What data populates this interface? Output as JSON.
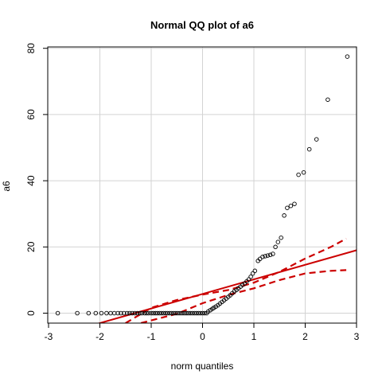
{
  "chart_data": {
    "type": "scatter",
    "title": "Normal QQ plot of  a6",
    "xlabel": "norm quantiles",
    "ylabel": "a6",
    "xlim": [
      -3,
      3
    ],
    "ylim": [
      -3,
      80
    ],
    "x_ticks": [
      -3,
      -2,
      -1,
      0,
      1,
      2,
      3
    ],
    "y_ticks": [
      0,
      20,
      40,
      60,
      80
    ],
    "grid": true,
    "colors": {
      "points": "#000000",
      "fit": "#cc0000",
      "envelope": "#cc0000",
      "grid": "#d3d3d3"
    },
    "fit_line": {
      "intercept": 5.8,
      "slope": 4.4
    },
    "envelope": {
      "upper": [
        [
          -1.5,
          -3.0
        ],
        [
          -1.0,
          1.6
        ],
        [
          -0.5,
          4.0
        ],
        [
          0.0,
          5.6
        ],
        [
          0.5,
          7.0
        ],
        [
          1.0,
          9.2
        ],
        [
          1.5,
          12.5
        ],
        [
          2.0,
          16.5
        ],
        [
          2.5,
          20.0
        ],
        [
          2.8,
          22.5
        ]
      ],
      "lower": [
        [
          -1.2,
          -3.0
        ],
        [
          -0.5,
          -0.2
        ],
        [
          0.0,
          3.0
        ],
        [
          0.5,
          5.5
        ],
        [
          1.0,
          7.5
        ],
        [
          1.5,
          10.0
        ],
        [
          2.0,
          12.0
        ],
        [
          2.5,
          12.8
        ],
        [
          2.8,
          13.0
        ]
      ]
    },
    "points": [
      [
        -2.82,
        0.0
      ],
      [
        -2.44,
        0.0
      ],
      [
        -2.22,
        0.0
      ],
      [
        -2.08,
        0.0
      ],
      [
        -1.97,
        0.0
      ],
      [
        -1.87,
        0.0
      ],
      [
        -1.79,
        0.0
      ],
      [
        -1.72,
        0.0
      ],
      [
        -1.65,
        0.0
      ],
      [
        -1.59,
        0.0
      ],
      [
        -1.53,
        0.0
      ],
      [
        -1.47,
        0.0
      ],
      [
        -1.42,
        0.0
      ],
      [
        -1.37,
        0.0
      ],
      [
        -1.32,
        0.0
      ],
      [
        -1.27,
        0.0
      ],
      [
        -1.22,
        0.0
      ],
      [
        -1.18,
        0.0
      ],
      [
        -1.13,
        0.0
      ],
      [
        -1.09,
        0.0
      ],
      [
        -1.05,
        0.0
      ],
      [
        -1.0,
        0.0
      ],
      [
        -0.96,
        0.0
      ],
      [
        -0.92,
        0.0
      ],
      [
        -0.88,
        0.0
      ],
      [
        -0.84,
        0.0
      ],
      [
        -0.8,
        0.0
      ],
      [
        -0.76,
        0.0
      ],
      [
        -0.72,
        0.0
      ],
      [
        -0.68,
        0.0
      ],
      [
        -0.64,
        0.0
      ],
      [
        -0.6,
        0.0
      ],
      [
        -0.56,
        0.0
      ],
      [
        -0.52,
        0.0
      ],
      [
        -0.48,
        0.0
      ],
      [
        -0.44,
        0.0
      ],
      [
        -0.4,
        0.0
      ],
      [
        -0.36,
        0.0
      ],
      [
        -0.32,
        0.0
      ],
      [
        -0.28,
        0.0
      ],
      [
        -0.24,
        0.0
      ],
      [
        -0.2,
        0.0
      ],
      [
        -0.16,
        0.0
      ],
      [
        -0.12,
        0.0
      ],
      [
        -0.08,
        0.0
      ],
      [
        -0.04,
        0.0
      ],
      [
        0.0,
        0.0
      ],
      [
        0.04,
        0.0
      ],
      [
        0.08,
        0.0
      ],
      [
        0.11,
        0.5
      ],
      [
        0.15,
        0.9
      ],
      [
        0.19,
        1.3
      ],
      [
        0.22,
        1.6
      ],
      [
        0.26,
        2.0
      ],
      [
        0.3,
        2.4
      ],
      [
        0.34,
        2.9
      ],
      [
        0.38,
        3.4
      ],
      [
        0.42,
        3.9
      ],
      [
        0.46,
        4.4
      ],
      [
        0.5,
        4.9
      ],
      [
        0.54,
        5.4
      ],
      [
        0.58,
        6.0
      ],
      [
        0.62,
        6.6
      ],
      [
        0.66,
        7.0
      ],
      [
        0.7,
        7.5
      ],
      [
        0.74,
        8.0
      ],
      [
        0.78,
        8.5
      ],
      [
        0.82,
        9.0
      ],
      [
        0.86,
        9.6
      ],
      [
        0.9,
        10.2
      ],
      [
        0.94,
        11.0
      ],
      [
        0.98,
        12.0
      ],
      [
        1.02,
        12.8
      ],
      [
        1.08,
        15.8
      ],
      [
        1.12,
        16.4
      ],
      [
        1.17,
        17.0
      ],
      [
        1.22,
        17.2
      ],
      [
        1.27,
        17.4
      ],
      [
        1.32,
        17.6
      ],
      [
        1.37,
        17.9
      ],
      [
        1.42,
        20.0
      ],
      [
        1.47,
        21.5
      ],
      [
        1.53,
        22.8
      ],
      [
        1.59,
        29.5
      ],
      [
        1.65,
        31.8
      ],
      [
        1.72,
        32.4
      ],
      [
        1.79,
        33.0
      ],
      [
        1.87,
        41.8
      ],
      [
        1.97,
        42.5
      ],
      [
        2.08,
        49.5
      ],
      [
        2.22,
        52.5
      ],
      [
        2.44,
        64.5
      ],
      [
        2.82,
        77.5
      ]
    ]
  }
}
